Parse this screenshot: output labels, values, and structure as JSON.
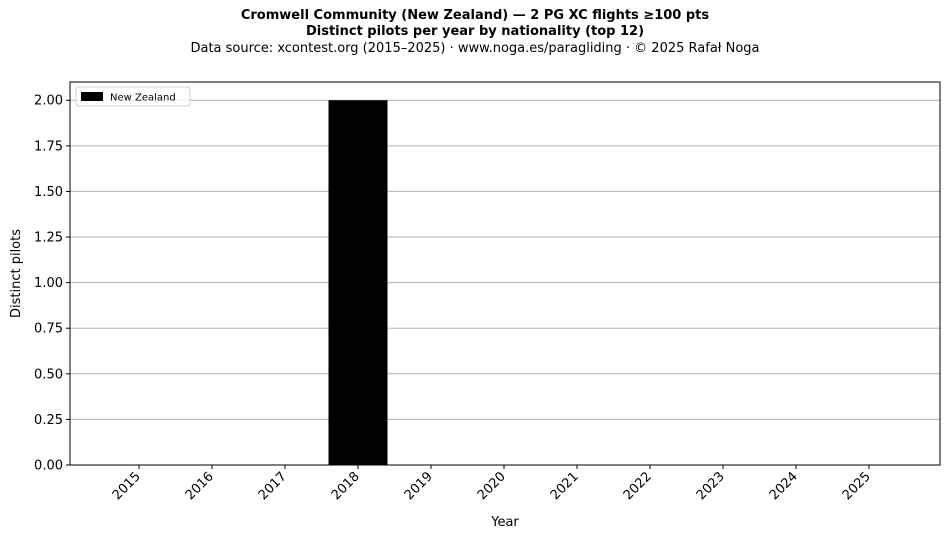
{
  "header": {
    "title": "Cromwell Community (New Zealand)  —  2 PG XC flights ≥100 pts",
    "subtitle": "Distinct pilots per year by nationality (top 12)",
    "source": "Data source: xcontest.org (2015–2025)  ·  www.noga.es/paragliding  ·  © 2025 Rafał Noga"
  },
  "chart_data": {
    "type": "bar",
    "stacked": true,
    "title": "Cromwell Community (New Zealand)  —  2 PG XC flights ≥100 pts",
    "subtitle": "Distinct pilots per year by nationality (top 12)",
    "xlabel": "Year",
    "ylabel": "Distinct pilots",
    "categories": [
      "2015",
      "2016",
      "2017",
      "2018",
      "2019",
      "2020",
      "2021",
      "2022",
      "2023",
      "2024",
      "2025"
    ],
    "series": [
      {
        "name": "New Zealand",
        "color": "#000000",
        "values": [
          0,
          0,
          0,
          2,
          0,
          0,
          0,
          0,
          0,
          0,
          0
        ]
      }
    ],
    "ylim": [
      0,
      2.1
    ],
    "yticks": [
      0,
      0.25,
      0.5,
      0.75,
      1.0,
      1.25,
      1.5,
      1.75,
      2.0
    ],
    "ytick_labels": [
      "0.00",
      "0.25",
      "0.50",
      "0.75",
      "1.00",
      "1.25",
      "1.50",
      "1.75",
      "2.00"
    ],
    "grid": "y",
    "legend": "top-left",
    "xtick_rotation": 45
  }
}
